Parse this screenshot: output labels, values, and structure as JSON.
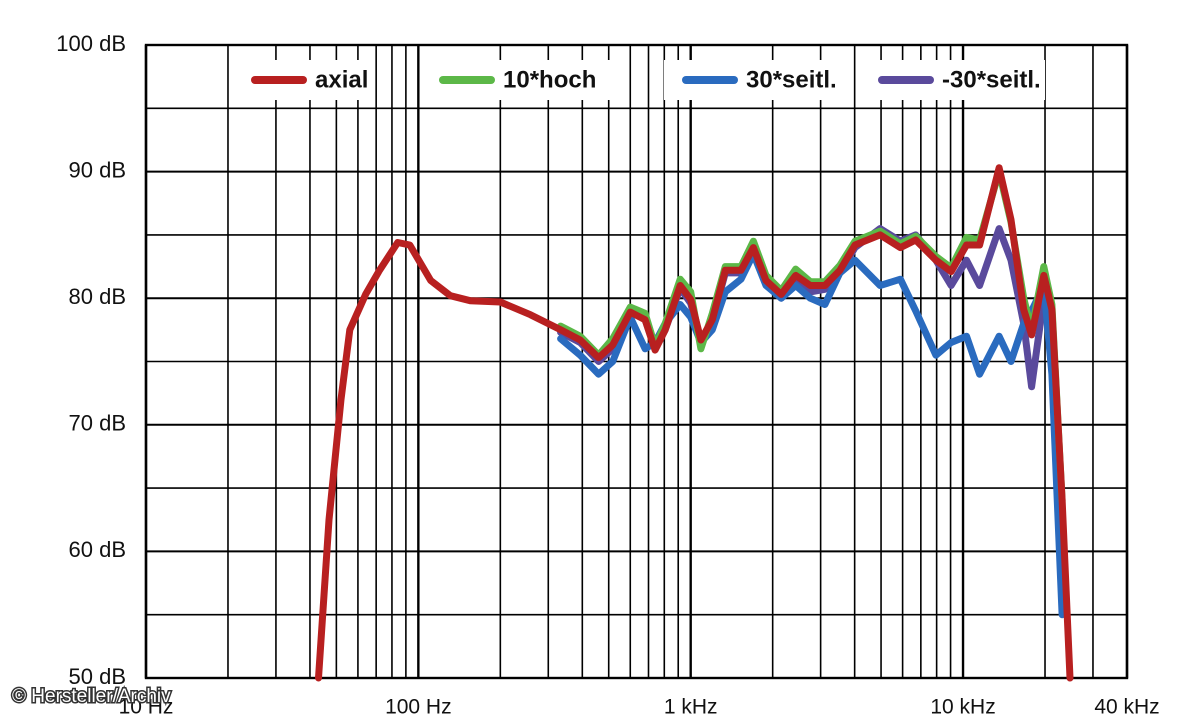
{
  "chart_data": {
    "type": "line",
    "log_x": true,
    "grid": true,
    "legend_position": "top",
    "x": [
      43,
      47,
      52,
      56,
      64,
      72,
      84,
      93,
      111,
      131,
      155,
      200,
      258,
      333,
      393,
      459,
      517,
      600,
      680,
      740,
      806,
      915,
      1000,
      1090,
      1200,
      1340,
      1530,
      1700,
      1890,
      2150,
      2430,
      2750,
      3110,
      3530,
      4010,
      4960,
      5890,
      6700,
      7950,
      9040,
      10300,
      11500,
      13560,
      15000,
      16700,
      17850,
      19800,
      21200,
      23100,
      24700
    ],
    "xlim": [
      10,
      40000
    ],
    "xticks": [
      {
        "value": 10,
        "label": "10 Hz"
      },
      {
        "value": 100,
        "label": "100 Hz"
      },
      {
        "value": 1000,
        "label": "1 kHz"
      },
      {
        "value": 10000,
        "label": "10 kHz"
      },
      {
        "value": 40000,
        "label": "40 kHz"
      }
    ],
    "ylim": [
      50,
      100
    ],
    "yticks": [
      {
        "value": 50,
        "label": "50 dB"
      },
      {
        "value": 60,
        "label": "60 dB"
      },
      {
        "value": 70,
        "label": "70 dB"
      },
      {
        "value": 80,
        "label": "80 dB"
      },
      {
        "value": 90,
        "label": "90 dB"
      },
      {
        "value": 100,
        "label": "100 dB"
      }
    ],
    "series": [
      {
        "name": "axial",
        "color": "#b82020",
        "values": [
          50,
          62.5,
          72,
          77.5,
          80.3,
          82.2,
          84.4,
          84.2,
          81.4,
          80.2,
          79.8,
          79.7,
          78.7,
          77.5,
          76.7,
          75.3,
          76.3,
          78.9,
          78.3,
          75.9,
          77.5,
          81,
          79.9,
          76.7,
          78.3,
          82.2,
          82.2,
          84,
          81.4,
          80.3,
          81.8,
          81,
          81,
          82.2,
          84.2,
          85,
          84,
          84.6,
          83,
          82.1,
          84.2,
          84.2,
          90.3,
          86.2,
          79.1,
          77.1,
          81.8,
          79.1,
          64.1,
          50
        ]
      },
      {
        "name": "10*hoch",
        "color": "#5cb848",
        "values": [
          null,
          null,
          null,
          null,
          null,
          null,
          null,
          null,
          null,
          null,
          null,
          null,
          null,
          77.8,
          77,
          75.5,
          76.8,
          79.3,
          78.8,
          76.2,
          78,
          81.5,
          80.5,
          76,
          78.8,
          82.5,
          82.5,
          84.5,
          81.8,
          80.6,
          82.3,
          81.3,
          81.3,
          82.6,
          84.5,
          85.3,
          84.3,
          84.9,
          83.3,
          82.4,
          84.8,
          84.6,
          90,
          86,
          80,
          77.5,
          82.5,
          79.5,
          64,
          null
        ]
      },
      {
        "name": "30*seitl.",
        "color": "#2a6bbf",
        "values": [
          null,
          null,
          null,
          null,
          null,
          null,
          null,
          null,
          null,
          null,
          null,
          null,
          null,
          76.8,
          75.5,
          74,
          75,
          78.5,
          76,
          76.5,
          78,
          79.5,
          78.5,
          76.5,
          77.5,
          80.5,
          81.5,
          83.5,
          81,
          80,
          81,
          80,
          79.5,
          82,
          83,
          81,
          81.5,
          79,
          75.5,
          76.5,
          77,
          74,
          77,
          75,
          78,
          79,
          81,
          74,
          55,
          null
        ]
      },
      {
        "name": "-30*seitl.",
        "color": "#5a4a9c",
        "values": [
          null,
          null,
          null,
          null,
          null,
          null,
          null,
          null,
          null,
          null,
          null,
          null,
          null,
          77.3,
          76.5,
          75,
          76,
          79,
          78.3,
          76,
          77.5,
          80.8,
          79.6,
          76.5,
          78.2,
          82,
          82,
          83.8,
          81.2,
          80,
          81.5,
          80.5,
          80.7,
          82,
          84,
          85.5,
          84.5,
          85,
          83,
          81,
          83,
          81,
          85.5,
          83,
          78,
          73,
          80,
          78,
          62,
          null
        ]
      }
    ]
  },
  "credit": "© Hersteller/Archiv"
}
